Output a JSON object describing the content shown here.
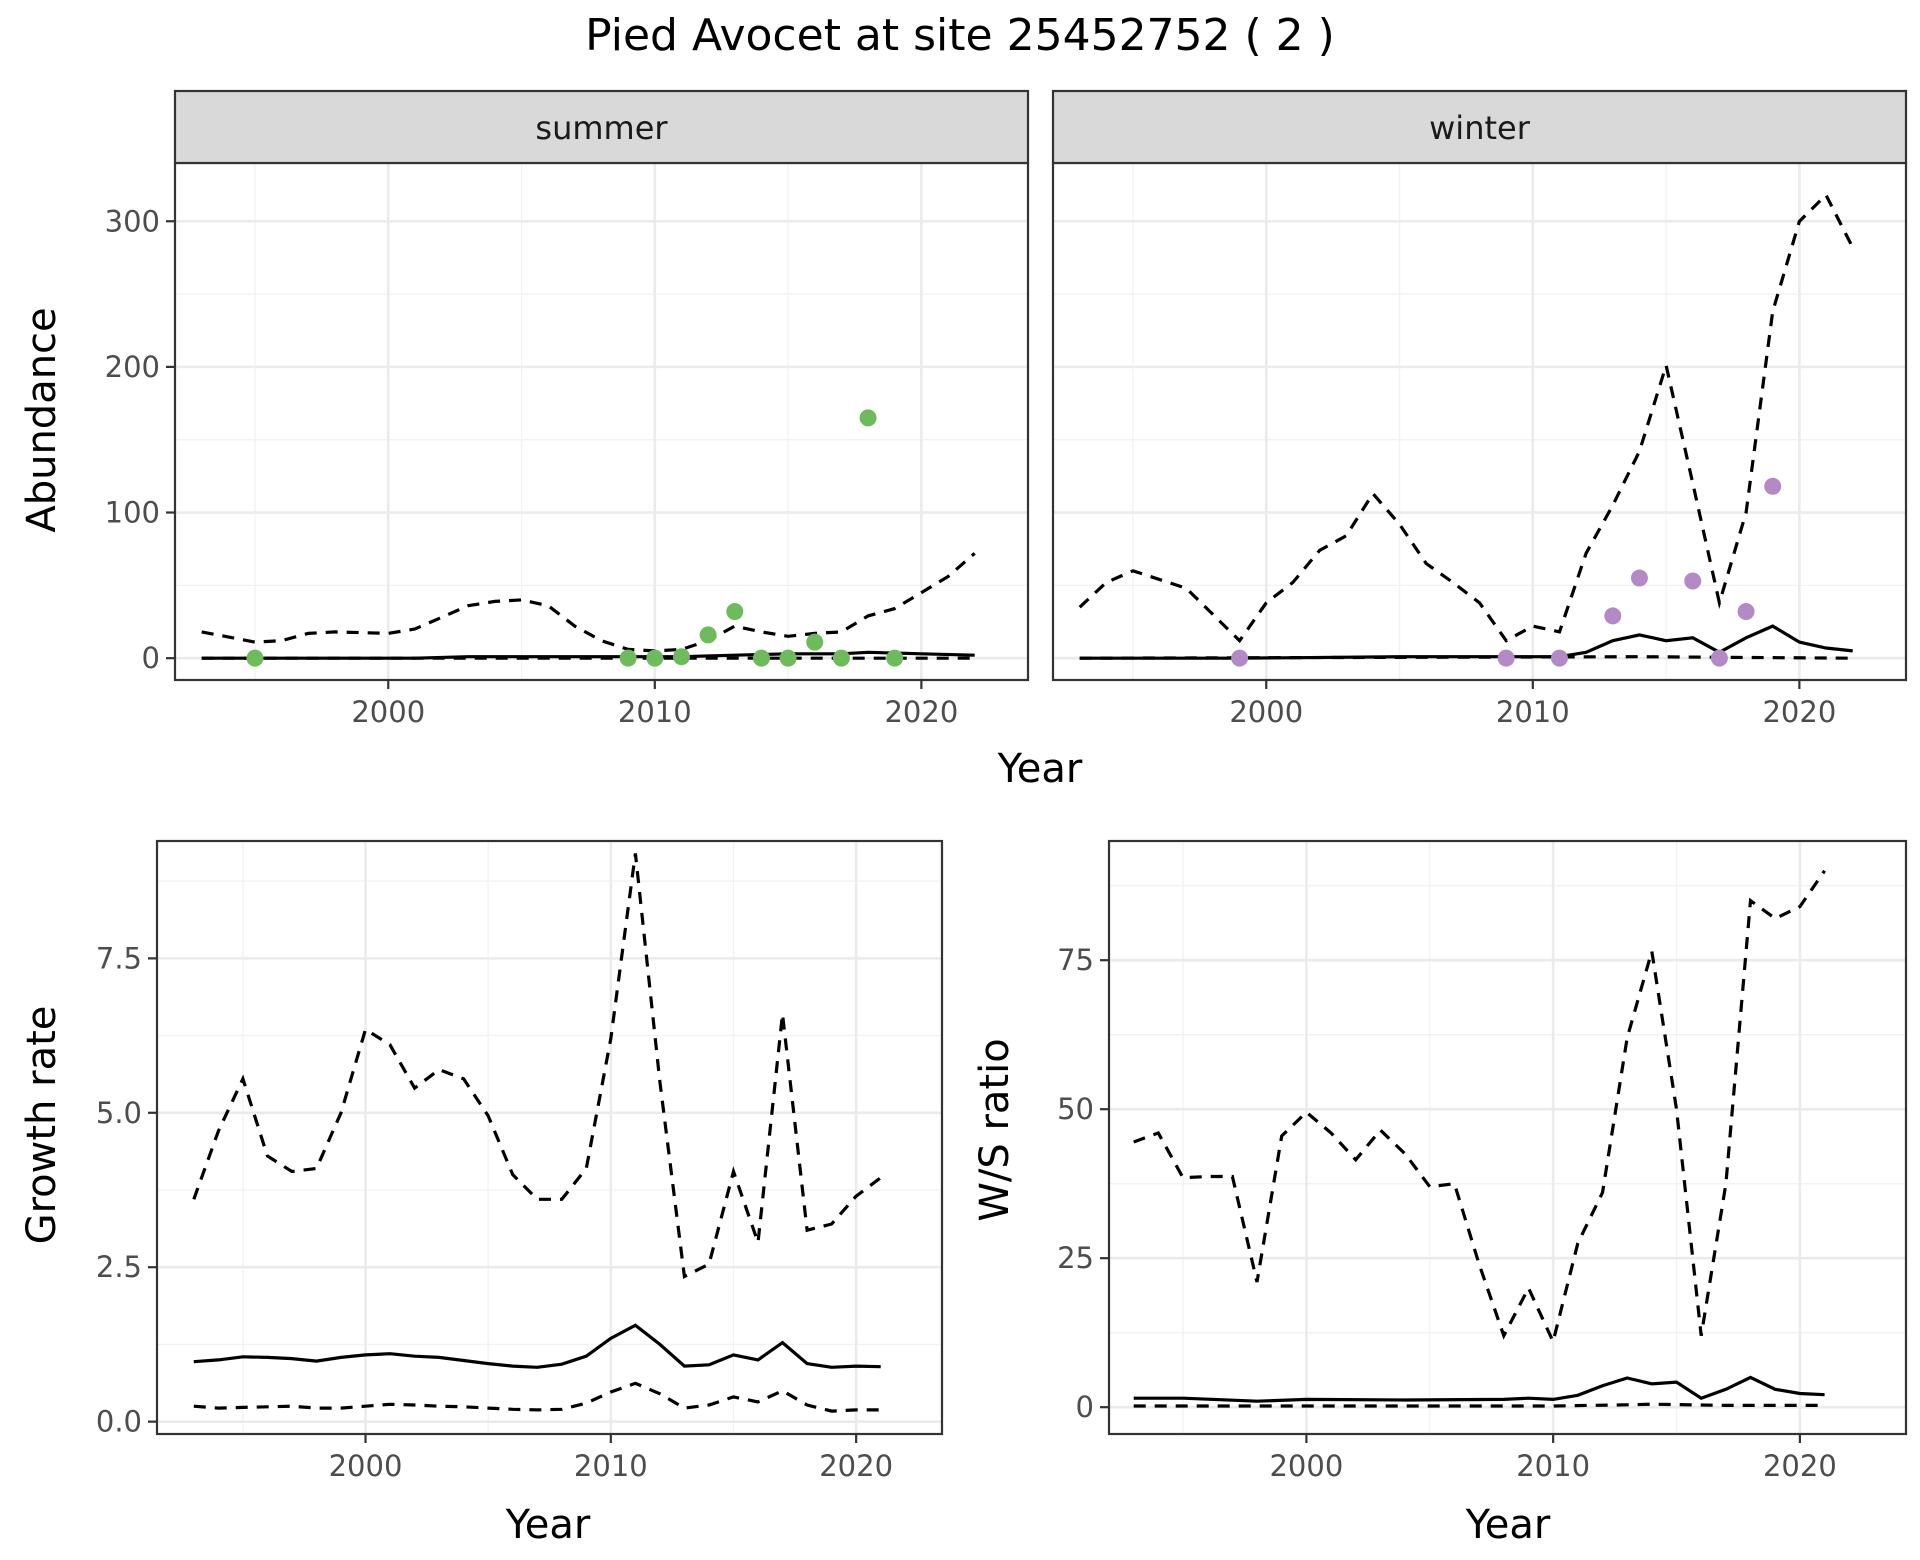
{
  "page": {
    "title": "Pied Avocet at site 25452752 ( 2 )"
  },
  "colors": {
    "summer_points": "#6dbb5a",
    "winter_points": "#b48ac6",
    "lines": "#000000",
    "strip_background": "#d9d9d9"
  },
  "chart_data": [
    {
      "id": "abundance",
      "type": "line",
      "xlabel": "Year",
      "ylabel": "Abundance",
      "xlim": [
        1992,
        2024
      ],
      "ylim": [
        -15,
        340
      ],
      "xticks": [
        2000,
        2010,
        2020
      ],
      "yticks": [
        0,
        100,
        200,
        300
      ],
      "grid": true,
      "facets": [
        {
          "strip": "summer",
          "point_color": "#6dbb5a",
          "series": [
            {
              "style": "solid",
              "x": [
                1993,
                1995,
                1997,
                1999,
                2001,
                2003,
                2005,
                2007,
                2009,
                2011,
                2013,
                2015,
                2017,
                2018,
                2020,
                2022
              ],
              "y": [
                0,
                0,
                0,
                0,
                0,
                1,
                1,
                1,
                1,
                1,
                2,
                3,
                3,
                4,
                3,
                2
              ]
            },
            {
              "style": "dashed",
              "x": [
                1993,
                1995,
                1996,
                1997,
                1998,
                2000,
                2001,
                2002,
                2003,
                2004,
                2005,
                2006,
                2007,
                2008,
                2009,
                2010,
                2011,
                2012,
                2013,
                2014,
                2015,
                2016,
                2017,
                2018,
                2019,
                2020,
                2021,
                2022
              ],
              "y": [
                18,
                11,
                12,
                17,
                18,
                17,
                20,
                28,
                36,
                39,
                40,
                36,
                22,
                12,
                6,
                5,
                6,
                12,
                22,
                18,
                15,
                17,
                18,
                29,
                34,
                45,
                56,
                72
              ]
            },
            {
              "style": "dashed",
              "x": [
                1993,
                2022
              ],
              "y": [
                0,
                0
              ]
            }
          ],
          "points": {
            "x": [
              1995,
              2009,
              2010,
              2011,
              2012,
              2013,
              2014,
              2015,
              2016,
              2017,
              2018,
              2019
            ],
            "y": [
              0,
              0,
              0,
              1,
              16,
              32,
              0,
              0,
              11,
              0,
              165,
              0
            ]
          }
        },
        {
          "strip": "winter",
          "point_color": "#b48ac6",
          "series": [
            {
              "style": "solid",
              "x": [
                1993,
                1999,
                2005,
                2009,
                2011,
                2012,
                2013,
                2014,
                2015,
                2016,
                2017,
                2018,
                2019,
                2020,
                2021,
                2022
              ],
              "y": [
                0,
                0,
                1,
                1,
                1,
                4,
                12,
                16,
                12,
                14,
                4,
                14,
                22,
                11,
                7,
                5
              ]
            },
            {
              "style": "dashed",
              "x": [
                1993,
                1994,
                1995,
                1997,
                1999,
                2000,
                2001,
                2002,
                2003,
                2004,
                2005,
                2006,
                2007,
                2008,
                2009,
                2010,
                2011,
                2012,
                2013,
                2014,
                2015,
                2016,
                2017,
                2018,
                2019,
                2020,
                2021,
                2022
              ],
              "y": [
                35,
                52,
                60,
                48,
                12,
                38,
                52,
                74,
                84,
                113,
                92,
                65,
                52,
                38,
                12,
                22,
                18,
                72,
                105,
                142,
                201,
                120,
                38,
                100,
                238,
                300,
                318,
                282
              ]
            },
            {
              "style": "dashed",
              "x": [
                1993,
                2014,
                2022
              ],
              "y": [
                0,
                1,
                0
              ]
            }
          ],
          "points": {
            "x": [
              1999,
              2009,
              2011,
              2013,
              2014,
              2016,
              2017,
              2018,
              2019
            ],
            "y": [
              0,
              0,
              0,
              29,
              55,
              53,
              0,
              32,
              118
            ]
          }
        }
      ]
    },
    {
      "id": "growth-rate",
      "type": "line",
      "xlabel": "Year",
      "ylabel": "Growth rate",
      "xlim": [
        1991.5,
        2023.5
      ],
      "ylim": [
        -0.2,
        9.4
      ],
      "xticks": [
        2000,
        2010,
        2020
      ],
      "yticks": [
        0.0,
        2.5,
        5.0,
        7.5
      ],
      "ytick_labels": [
        "0.0",
        "2.5",
        "5.0",
        "7.5"
      ],
      "grid": true,
      "series": [
        {
          "style": "solid",
          "x": [
            1993,
            1994,
            1995,
            1996,
            1997,
            1998,
            1999,
            2000,
            2001,
            2002,
            2003,
            2004,
            2005,
            2006,
            2007,
            2008,
            2009,
            2010,
            2011,
            2012,
            2013,
            2014,
            2015,
            2016,
            2017,
            2018,
            2019,
            2020,
            2021
          ],
          "y": [
            0.97,
            1.0,
            1.05,
            1.04,
            1.02,
            0.98,
            1.04,
            1.08,
            1.1,
            1.06,
            1.04,
            0.99,
            0.94,
            0.9,
            0.88,
            0.93,
            1.06,
            1.35,
            1.56,
            1.25,
            0.9,
            0.92,
            1.08,
            1.0,
            1.28,
            0.94,
            0.88,
            0.9,
            0.89
          ]
        },
        {
          "style": "dashed",
          "x": [
            1993,
            1994,
            1995,
            1996,
            1997,
            1998,
            1999,
            2000,
            2001,
            2002,
            2003,
            2004,
            2005,
            2006,
            2007,
            2008,
            2009,
            2010,
            2011,
            2012,
            2013,
            2014,
            2015,
            2016,
            2017,
            2018,
            2019,
            2020,
            2021
          ],
          "y": [
            3.6,
            4.7,
            5.55,
            4.3,
            4.05,
            4.1,
            5.0,
            6.35,
            6.1,
            5.4,
            5.7,
            5.55,
            4.95,
            4.0,
            3.6,
            3.6,
            4.1,
            6.2,
            9.2,
            5.5,
            2.35,
            2.55,
            4.05,
            2.9,
            6.6,
            3.1,
            3.2,
            3.65,
            3.95
          ]
        },
        {
          "style": "dashed",
          "x": [
            1993,
            1994,
            1995,
            1996,
            1997,
            1998,
            1999,
            2000,
            2001,
            2002,
            2003,
            2004,
            2005,
            2006,
            2007,
            2008,
            2009,
            2010,
            2011,
            2012,
            2013,
            2014,
            2015,
            2016,
            2017,
            2018,
            2019,
            2020,
            2021
          ],
          "y": [
            0.25,
            0.22,
            0.23,
            0.24,
            0.25,
            0.22,
            0.22,
            0.25,
            0.28,
            0.27,
            0.25,
            0.24,
            0.22,
            0.2,
            0.19,
            0.2,
            0.3,
            0.48,
            0.62,
            0.45,
            0.22,
            0.27,
            0.4,
            0.32,
            0.5,
            0.27,
            0.17,
            0.19,
            0.19
          ]
        }
      ]
    },
    {
      "id": "ws-ratio",
      "type": "line",
      "xlabel": "Year",
      "ylabel": "W/S ratio",
      "xlim": [
        1992,
        2024.3
      ],
      "ylim": [
        -4.5,
        95
      ],
      "xticks": [
        2000,
        2010,
        2020
      ],
      "yticks": [
        0,
        25,
        50,
        75
      ],
      "grid": true,
      "series": [
        {
          "style": "solid",
          "x": [
            1993,
            1995,
            1998,
            2000,
            2004,
            2008,
            2009,
            2010,
            2011,
            2012,
            2013,
            2014,
            2015,
            2016,
            2017,
            2018,
            2019,
            2020,
            2021
          ],
          "y": [
            1.5,
            1.5,
            1.0,
            1.3,
            1.2,
            1.3,
            1.5,
            1.3,
            2.0,
            3.6,
            4.9,
            3.9,
            4.2,
            1.5,
            3.0,
            5.0,
            3.0,
            2.3,
            2.1
          ]
        },
        {
          "style": "dashed",
          "x": [
            1993,
            1994,
            1995,
            1996,
            1997,
            1998,
            1999,
            2000,
            2001,
            2002,
            2003,
            2004,
            2005,
            2006,
            2007,
            2008,
            2009,
            2010,
            2011,
            2012,
            2013,
            2014,
            2015,
            2016,
            2017,
            2018,
            2019,
            2020,
            2021
          ],
          "y": [
            44.5,
            46,
            38.5,
            38.7,
            38.7,
            21,
            45.5,
            49.5,
            46,
            41.5,
            46.5,
            42.5,
            37,
            37.5,
            24,
            12,
            20,
            11,
            27.5,
            36,
            62,
            76.5,
            50,
            12,
            37.5,
            85,
            82,
            84,
            90
          ]
        },
        {
          "style": "dashed",
          "x": [
            1993,
            2000,
            2010,
            2013,
            2014,
            2017,
            2021
          ],
          "y": [
            0.2,
            0.2,
            0.2,
            0.4,
            0.5,
            0.3,
            0.3
          ]
        }
      ]
    }
  ]
}
